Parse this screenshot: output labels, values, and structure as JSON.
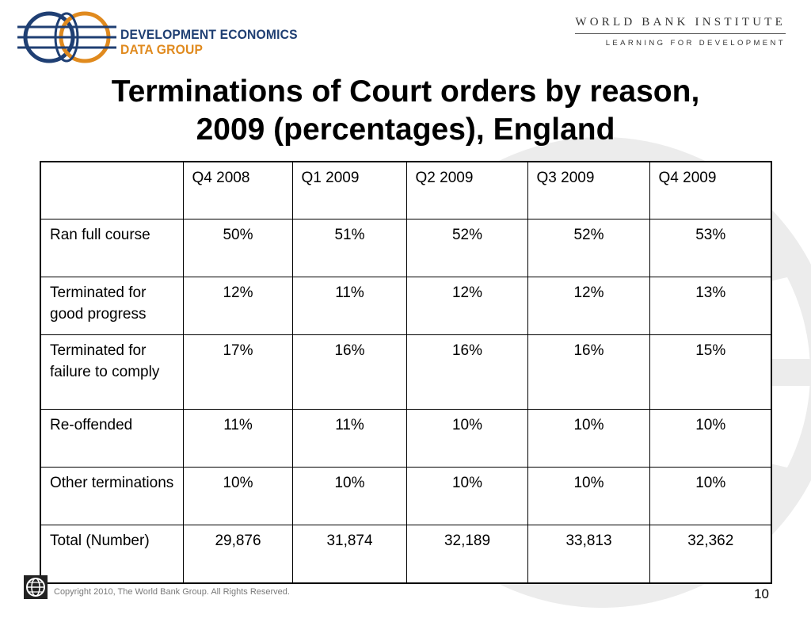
{
  "header": {
    "org_line1": "DEVELOPMENT ECONOMICS",
    "org_line2": "DATA GROUP",
    "institute_title": "WORLD BANK INSTITUTE",
    "institute_subtitle": "LEARNING FOR DEVELOPMENT",
    "logo_icon": "globe-icon"
  },
  "slide": {
    "title_line1": "Terminations of Court orders by reason,",
    "title_line2": "2009 (percentages), England"
  },
  "table": {
    "columns": [
      "",
      "Q4 2008",
      "Q1 2009",
      "Q2 2009",
      "Q3 2009",
      "Q4 2009"
    ],
    "rows": [
      {
        "label": "Ran full course",
        "values": [
          "50%",
          "51%",
          "52%",
          "52%",
          "53%"
        ]
      },
      {
        "label": "Terminated for good progress",
        "values": [
          "12%",
          "11%",
          "12%",
          "12%",
          "13%"
        ]
      },
      {
        "label": "Terminated for failure to comply",
        "values": [
          "17%",
          "16%",
          "16%",
          "16%",
          "15%"
        ]
      },
      {
        "label": "Re-offended",
        "values": [
          "11%",
          "11%",
          "10%",
          "10%",
          "10%"
        ]
      },
      {
        "label": "Other terminations",
        "values": [
          "10%",
          "10%",
          "10%",
          "10%",
          "10%"
        ]
      },
      {
        "label": "Total (Number)",
        "values": [
          "29,876",
          "31,874",
          "32,189",
          "33,813",
          "32,362"
        ]
      }
    ]
  },
  "footer": {
    "copyright": "Copyright 2010, The World Bank Group. All Rights Reserved.",
    "page_number": "10",
    "logo_icon": "world-bank-globe-icon"
  },
  "colors": {
    "navy": "#1f3f73",
    "orange": "#e08a1e",
    "watermark": "#ececec"
  }
}
